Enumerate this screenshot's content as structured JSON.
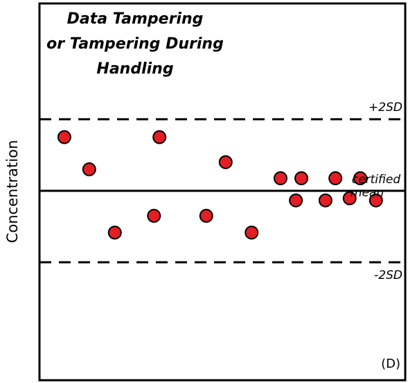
{
  "chart_data": {
    "type": "scatter",
    "title": [
      "Data Tampering",
      "or Tampering During",
      "Handling"
    ],
    "ylabel": "Concentration",
    "panel_label": "(D)",
    "xlim": [
      0,
      100
    ],
    "ylim": [
      -5.3,
      5.24
    ],
    "x": [
      6.8,
      13.6,
      20.6,
      31.3,
      32.8,
      45.6,
      50.9,
      58,
      65.9,
      70.1,
      71.6,
      78.2,
      80.9,
      84.8,
      87.7,
      92
    ],
    "series": [
      {
        "color": "#e31e24",
        "values": [
          1.5,
          0.6,
          -1.17,
          -0.7,
          1.5,
          -0.7,
          0.8,
          -1.17,
          0.35,
          -0.27,
          0.35,
          -0.27,
          0.35,
          -0.21,
          0.35,
          -0.27
        ]
      }
    ],
    "reference_lines": [
      {
        "label": "+2SD",
        "value": 2,
        "style": "dashed"
      },
      {
        "label": [
          "certified",
          "mean"
        ],
        "value": 0,
        "style": "solid"
      },
      {
        "label": "-2SD",
        "value": -2,
        "style": "dashed"
      }
    ]
  }
}
